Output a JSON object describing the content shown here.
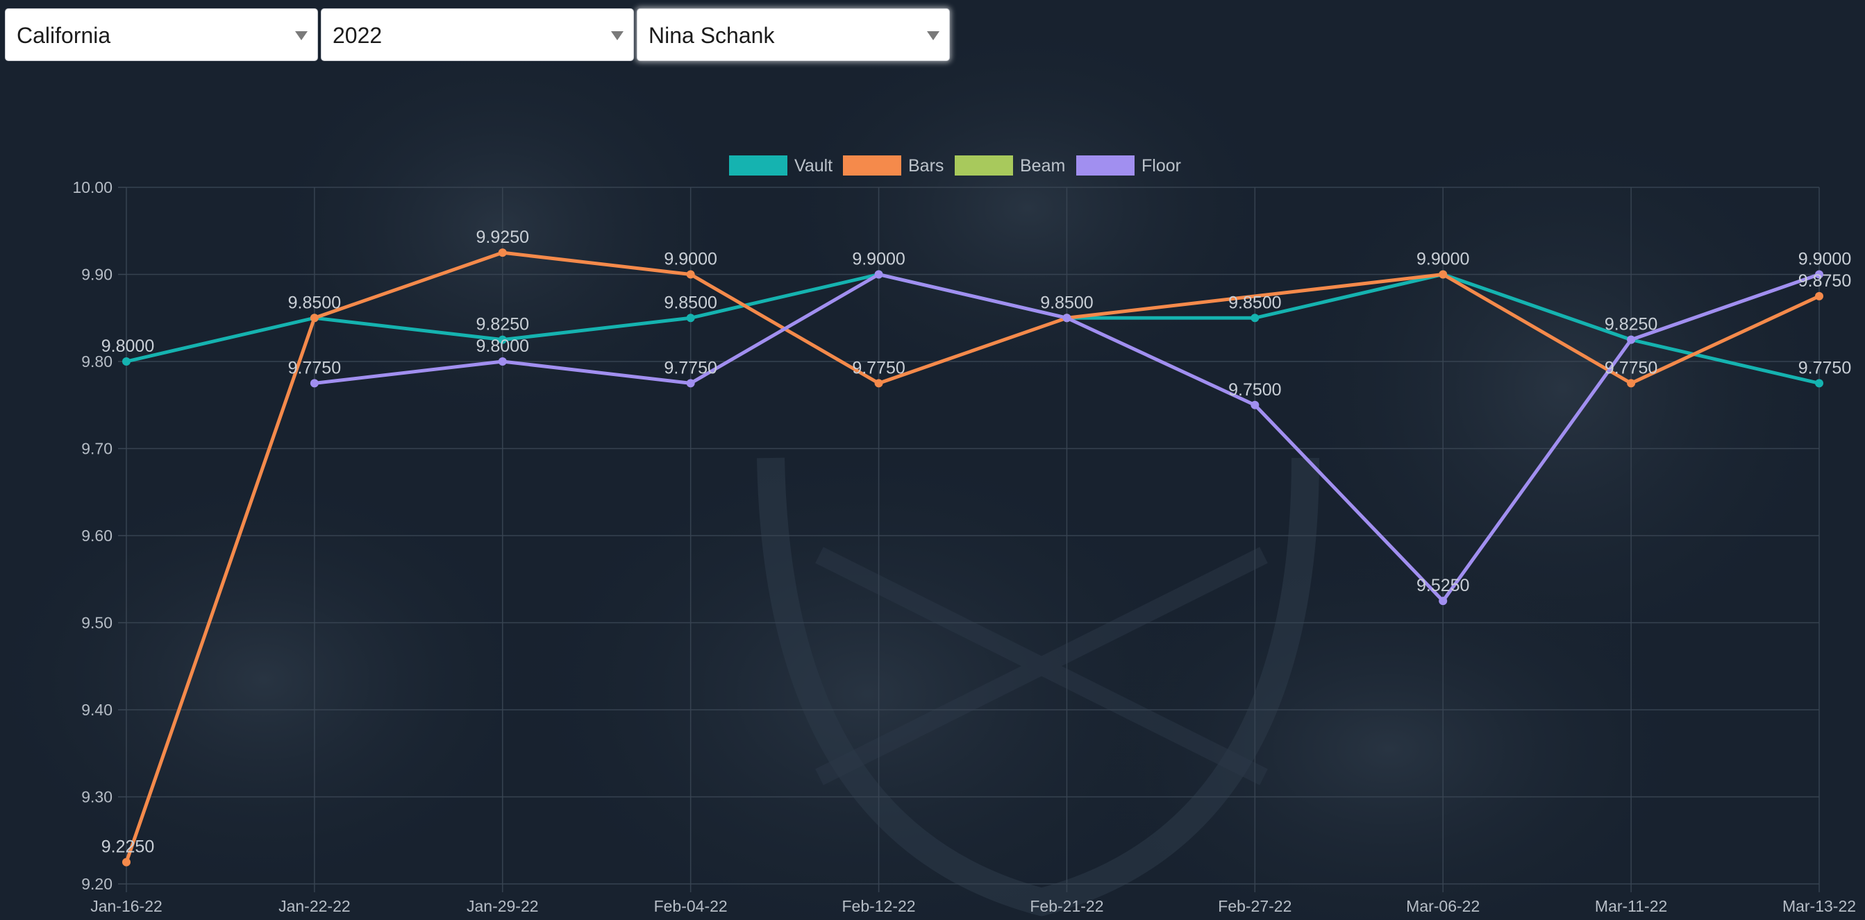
{
  "filters": {
    "team": "California",
    "year": "2022",
    "gymnast": "Nina Schank"
  },
  "chart_data": {
    "type": "line",
    "title": "",
    "xlabel": "",
    "ylabel": "",
    "ylim": [
      9.2,
      10.0
    ],
    "y_ticks": [
      "10.00",
      "9.90",
      "9.80",
      "9.70",
      "9.60",
      "9.50",
      "9.40",
      "9.30",
      "9.20"
    ],
    "grid": true,
    "legend_position": "top-center",
    "categories": [
      "Jan-16-22",
      "Jan-22-22",
      "Jan-29-22",
      "Feb-04-22",
      "Feb-12-22",
      "Feb-21-22",
      "Feb-27-22",
      "Mar-06-22",
      "Mar-11-22",
      "Mar-13-22"
    ],
    "series": [
      {
        "name": "Vault",
        "color": "#15b3b0",
        "values": [
          9.8,
          9.85,
          9.825,
          9.85,
          9.9,
          9.85,
          9.85,
          9.9,
          9.825,
          9.775
        ],
        "labels": [
          "9.8000",
          "9.8500",
          "9.8250",
          "9.8500",
          "9.9000",
          "9.8500",
          "9.8500",
          "9.9000",
          "9.8250",
          "9.7750"
        ]
      },
      {
        "name": "Bars",
        "color": "#f58a4b",
        "values": [
          9.225,
          9.85,
          9.925,
          9.9,
          9.775,
          9.85,
          null,
          9.9,
          9.775,
          9.875
        ],
        "labels": [
          "9.2250",
          "",
          "9.9250",
          "9.9000",
          "9.7750",
          "",
          "",
          "",
          "9.7750",
          "9.8750"
        ]
      },
      {
        "name": "Beam",
        "color": "#a8c95c",
        "values": [
          null,
          null,
          null,
          null,
          null,
          null,
          null,
          null,
          null,
          null
        ],
        "labels": [
          "",
          "",
          "",
          "",
          "",
          "",
          "",
          "",
          "",
          ""
        ]
      },
      {
        "name": "Floor",
        "color": "#a18ff0",
        "values": [
          null,
          9.775,
          9.8,
          9.775,
          9.9,
          9.85,
          9.75,
          9.525,
          9.825,
          9.9
        ],
        "labels": [
          "",
          "9.7750",
          "9.8000",
          "9.7750",
          "",
          "",
          "9.7500",
          "9.5250",
          "",
          "9.9000"
        ]
      }
    ]
  }
}
